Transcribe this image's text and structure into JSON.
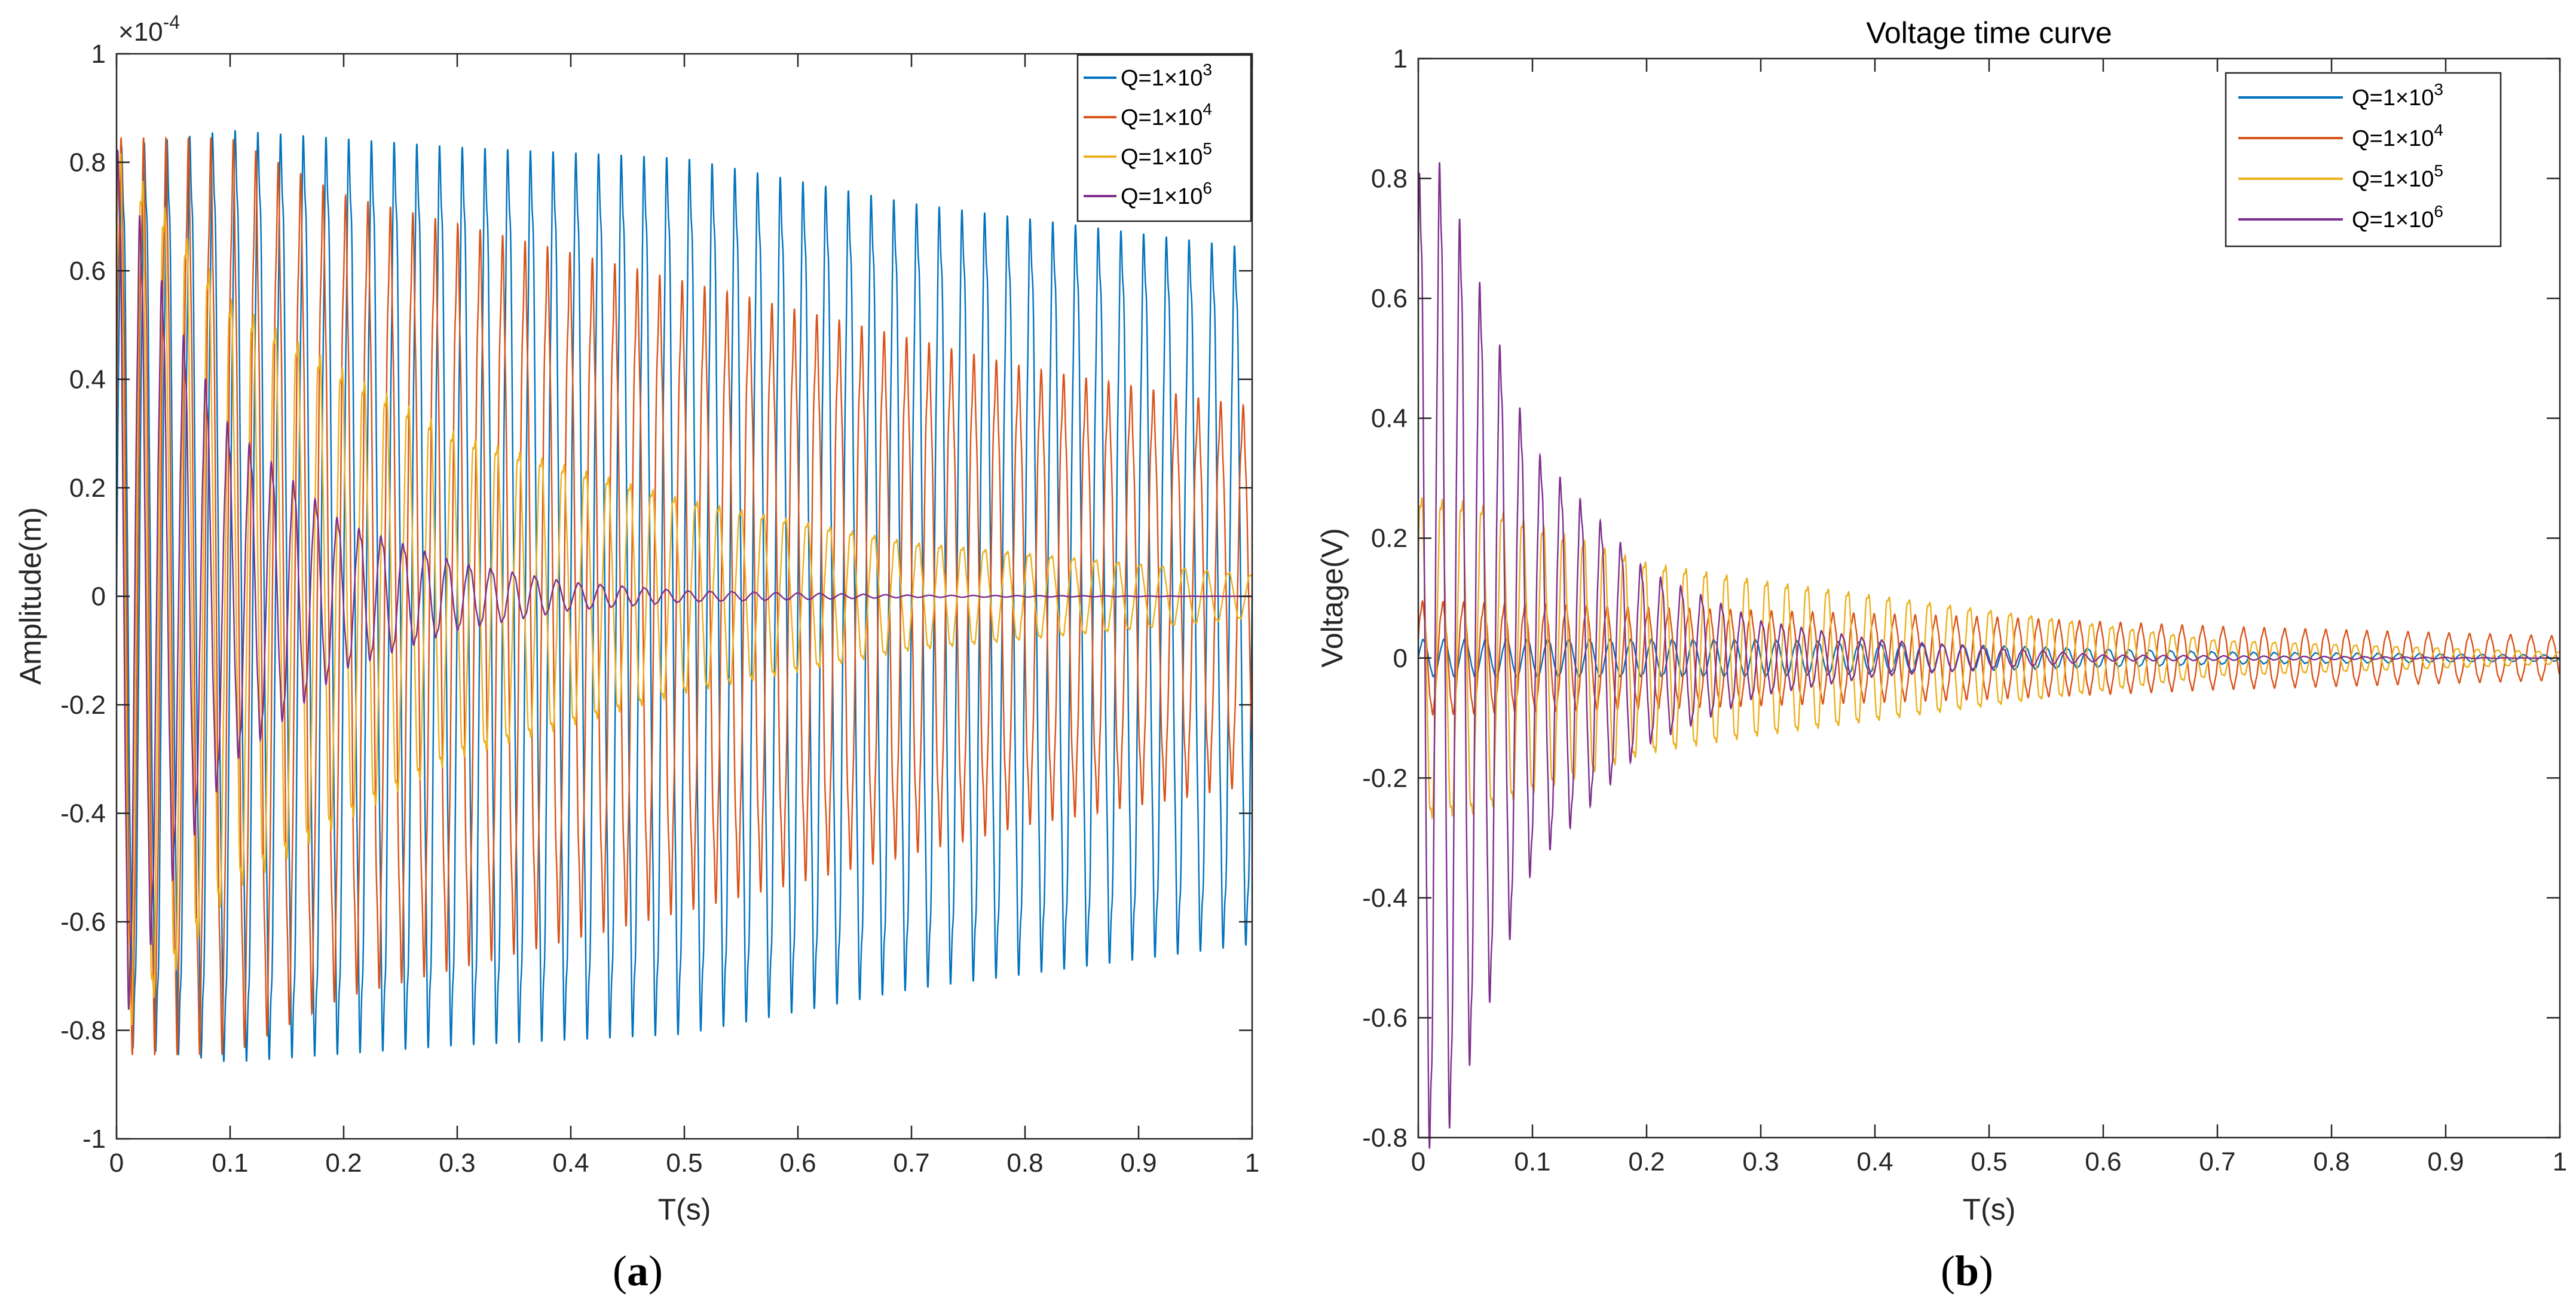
{
  "figure_labels": {
    "a_open": "(",
    "a_letter": "a",
    "a_close": ")",
    "b_open": "(",
    "b_letter": "b",
    "b_close": ")"
  },
  "colors": {
    "q1e3": "#0072BD",
    "q1e4": "#D95319",
    "q1e5": "#EDB120",
    "q1e6": "#7E2F8E"
  },
  "chart_data": [
    {
      "type": "line",
      "title": "",
      "xlabel": "T(s)",
      "ylabel": "Amplitude(m)",
      "exponent_label": "×10",
      "exponent_power": "-4",
      "xlim": [
        0,
        1
      ],
      "ylim": [
        -1,
        1
      ],
      "xticks": [
        "0",
        "0.1",
        "0.2",
        "0.3",
        "0.4",
        "0.5",
        "0.6",
        "0.7",
        "0.8",
        "0.9",
        "1"
      ],
      "yticks": [
        "1",
        "0.8",
        "0.6",
        "0.4",
        "0.2",
        "0",
        "-0.2",
        "-0.4",
        "-0.6",
        "-0.8",
        "-1"
      ],
      "legend_position": "top-right",
      "cycles_per_second": 50,
      "series": [
        {
          "name": "Q=1×10",
          "power": "3",
          "color_key": "q1e3",
          "envelope_t": [
            0,
            0.1,
            0.3,
            0.5,
            0.7,
            1.0
          ],
          "envelope_a": [
            0.8,
            0.83,
            0.8,
            0.78,
            0.7,
            0.62
          ]
        },
        {
          "name": "Q=1×10",
          "power": "4",
          "color_key": "q1e4",
          "envelope_t": [
            0,
            0.1,
            0.2,
            0.4,
            0.6,
            0.8,
            1.0
          ],
          "envelope_a": [
            0.8,
            0.8,
            0.7,
            0.6,
            0.5,
            0.4,
            0.33
          ]
        },
        {
          "name": "Q=1×10",
          "power": "5",
          "color_key": "q1e5",
          "envelope_t": [
            0,
            0.05,
            0.1,
            0.2,
            0.3,
            0.5,
            0.7,
            1.0
          ],
          "envelope_a": [
            0.83,
            0.7,
            0.55,
            0.42,
            0.3,
            0.18,
            0.1,
            0.04
          ]
        },
        {
          "name": "Q=1×10",
          "power": "6",
          "color_key": "q1e6",
          "envelope_t": [
            0,
            0.05,
            0.1,
            0.2,
            0.3,
            0.4,
            0.5,
            0.7,
            1.0
          ],
          "envelope_a": [
            0.8,
            0.5,
            0.3,
            0.13,
            0.06,
            0.025,
            0.01,
            0.002,
            0.0
          ]
        }
      ]
    },
    {
      "type": "line",
      "title": "Voltage time curve",
      "xlabel": "T(s)",
      "ylabel": "Voltage(V)",
      "xlim": [
        0,
        1
      ],
      "ylim": [
        -0.8,
        1
      ],
      "xticks": [
        "0",
        "0.1",
        "0.2",
        "0.3",
        "0.4",
        "0.5",
        "0.6",
        "0.7",
        "0.8",
        "0.9",
        "1"
      ],
      "yticks": [
        "1",
        "0.8",
        "0.6",
        "0.4",
        "0.2",
        "0",
        "-0.2",
        "-0.4",
        "-0.6",
        "-0.8"
      ],
      "legend_position": "top-right",
      "cycles_per_second": 55,
      "series": [
        {
          "name": "Q=1×10",
          "power": "3",
          "color_key": "q1e3",
          "envelope_t": [
            0,
            0.3,
            0.5,
            0.7,
            1.0
          ],
          "envelope_a": [
            0.03,
            0.03,
            0.02,
            0.01,
            0.005
          ]
        },
        {
          "name": "Q=1×10",
          "power": "4",
          "color_key": "q1e4",
          "envelope_t": [
            0,
            0.2,
            0.5,
            0.7,
            1.0
          ],
          "envelope_a": [
            0.09,
            0.08,
            0.065,
            0.05,
            0.035
          ]
        },
        {
          "name": "Q=1×10",
          "power": "5",
          "color_key": "q1e5",
          "envelope_t": [
            0,
            0.05,
            0.2,
            0.3,
            0.5,
            0.7,
            1.0
          ],
          "envelope_a": [
            0.27,
            0.26,
            0.16,
            0.13,
            0.08,
            0.03,
            0.01
          ]
        },
        {
          "name": "Q=1×10",
          "power": "6",
          "color_key": "q1e6",
          "envelope_t": [
            0,
            0.02,
            0.1,
            0.2,
            0.3,
            0.4,
            0.6,
            1.0
          ],
          "envelope_a": [
            0.78,
            0.8,
            0.34,
            0.14,
            0.06,
            0.03,
            0.005,
            0.0
          ]
        }
      ]
    }
  ]
}
